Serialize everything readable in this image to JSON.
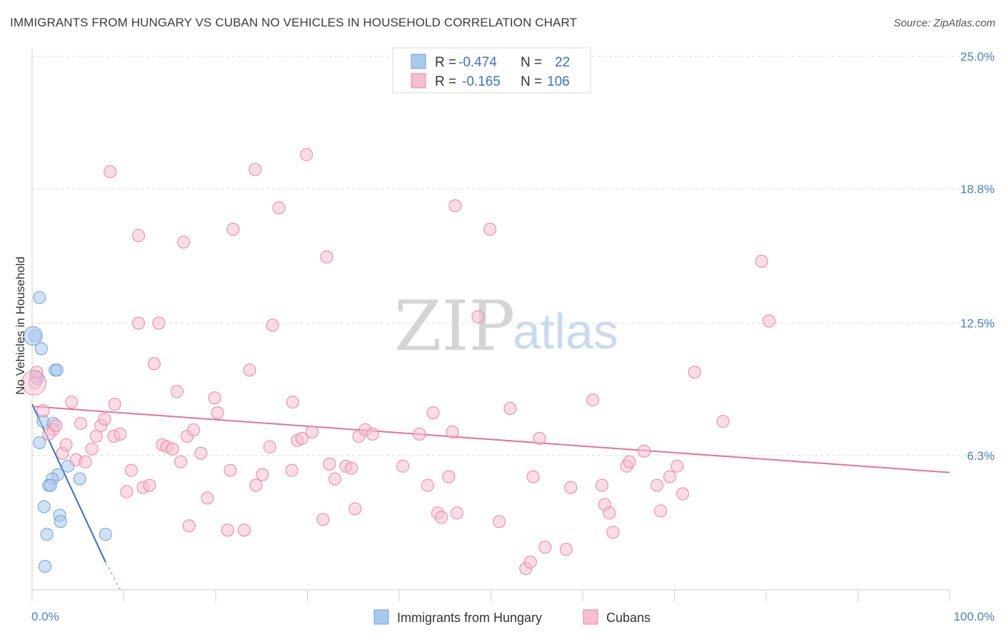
{
  "title": "IMMIGRANTS FROM HUNGARY VS CUBAN NO VEHICLES IN HOUSEHOLD CORRELATION CHART",
  "source": "Source: ZipAtlas.com",
  "watermark": {
    "part1": "ZIP",
    "part2": "atlas"
  },
  "colors": {
    "blue": "#a9c8ee",
    "blue_stroke": "#6f9fd8",
    "blue_line": "#2f6fce",
    "pink": "#f6bfd0",
    "pink_stroke": "#e8839f",
    "pink_line": "#e8709a",
    "axis_text": "#4a7fc1"
  },
  "chart_data": {
    "type": "scatter",
    "title": "IMMIGRANTS FROM HUNGARY VS CUBAN NO VEHICLES IN HOUSEHOLD CORRELATION CHART",
    "xlabel": "",
    "ylabel": "No Vehicles in Household",
    "xlim": [
      0,
      100
    ],
    "ylim": [
      0,
      25.0
    ],
    "x_tick_labels": [
      "0.0%",
      "100.0%"
    ],
    "y_ticks": [
      6.3,
      12.5,
      18.8,
      25.0
    ],
    "y_tick_labels": [
      "6.3%",
      "12.5%",
      "18.8%",
      "25.0%"
    ],
    "legend": [
      {
        "label": "R = ",
        "r": "-0.474",
        "n_label": "N = ",
        "n": "22"
      },
      {
        "label": "R = ",
        "r": "-0.165",
        "n_label": "N = ",
        "n": "106"
      }
    ],
    "series": [
      {
        "name": "Immigrants from Hungary",
        "color": "blue",
        "points": [
          [
            0.8,
            13.7
          ],
          [
            0.3,
            11.9
          ],
          [
            1.0,
            11.3
          ],
          [
            2.5,
            10.3
          ],
          [
            2.7,
            10.3
          ],
          [
            0.6,
            9.9
          ],
          [
            0.4,
            10.0
          ],
          [
            1.2,
            7.9
          ],
          [
            2.3,
            7.8
          ],
          [
            0.8,
            6.9
          ],
          [
            3.9,
            5.8
          ],
          [
            5.2,
            5.2
          ],
          [
            2.8,
            5.4
          ],
          [
            2.2,
            5.2
          ],
          [
            1.8,
            4.9
          ],
          [
            2.0,
            4.9
          ],
          [
            1.3,
            3.9
          ],
          [
            3.0,
            3.5
          ],
          [
            3.1,
            3.2
          ],
          [
            1.6,
            2.6
          ],
          [
            8.0,
            2.6
          ],
          [
            1.4,
            1.1
          ]
        ],
        "trend": {
          "x": [
            0,
            8
          ],
          "y": [
            8.7,
            1.3
          ],
          "dashed_to": [
            9.6,
            0.0
          ]
        }
      },
      {
        "name": "Cubans",
        "color": "pink",
        "points": [
          [
            0.5,
            10.2
          ],
          [
            0.3,
            9.7
          ],
          [
            1.2,
            8.4
          ],
          [
            2.3,
            7.5
          ],
          [
            2.6,
            7.7
          ],
          [
            1.8,
            7.3
          ],
          [
            4.3,
            8.8
          ],
          [
            5.3,
            7.8
          ],
          [
            3.3,
            6.4
          ],
          [
            3.7,
            6.8
          ],
          [
            4.8,
            6.1
          ],
          [
            5.8,
            6.0
          ],
          [
            6.5,
            6.6
          ],
          [
            7.0,
            7.2
          ],
          [
            7.5,
            7.7
          ],
          [
            7.9,
            8.0
          ],
          [
            9.0,
            8.7
          ],
          [
            8.9,
            7.2
          ],
          [
            9.6,
            7.3
          ],
          [
            10.8,
            5.6
          ],
          [
            10.3,
            4.6
          ],
          [
            12.1,
            4.8
          ],
          [
            12.8,
            4.9
          ],
          [
            11.6,
            12.5
          ],
          [
            13.3,
            10.6
          ],
          [
            13.8,
            12.5
          ],
          [
            14.2,
            6.8
          ],
          [
            14.7,
            6.7
          ],
          [
            15.3,
            6.6
          ],
          [
            15.8,
            9.3
          ],
          [
            16.2,
            6.0
          ],
          [
            16.9,
            7.2
          ],
          [
            17.6,
            7.5
          ],
          [
            18.4,
            6.4
          ],
          [
            19.1,
            4.3
          ],
          [
            19.9,
            9.0
          ],
          [
            20.2,
            8.3
          ],
          [
            17.1,
            3.0
          ],
          [
            21.3,
            2.8
          ],
          [
            21.6,
            5.6
          ],
          [
            23.1,
            2.8
          ],
          [
            23.7,
            10.3
          ],
          [
            24.4,
            4.9
          ],
          [
            25.1,
            5.4
          ],
          [
            25.9,
            6.7
          ],
          [
            26.2,
            12.4
          ],
          [
            28.3,
            5.6
          ],
          [
            28.4,
            8.8
          ],
          [
            28.9,
            7.0
          ],
          [
            29.4,
            7.1
          ],
          [
            30.5,
            7.4
          ],
          [
            31.7,
            3.3
          ],
          [
            32.4,
            5.9
          ],
          [
            33.0,
            5.2
          ],
          [
            34.2,
            5.8
          ],
          [
            34.8,
            5.7
          ],
          [
            35.2,
            3.8
          ],
          [
            35.6,
            7.2
          ],
          [
            36.3,
            7.5
          ],
          [
            37.1,
            7.3
          ],
          [
            40.4,
            5.8
          ],
          [
            42.2,
            7.3
          ],
          [
            43.1,
            4.9
          ],
          [
            43.7,
            8.3
          ],
          [
            44.2,
            3.6
          ],
          [
            44.6,
            3.4
          ],
          [
            45.4,
            5.3
          ],
          [
            45.8,
            7.4
          ],
          [
            46.3,
            3.6
          ],
          [
            48.6,
            12.8
          ],
          [
            50.9,
            3.2
          ],
          [
            52.1,
            8.5
          ],
          [
            53.8,
            1.0
          ],
          [
            54.3,
            1.3
          ],
          [
            54.6,
            5.3
          ],
          [
            55.3,
            7.1
          ],
          [
            55.9,
            2.0
          ],
          [
            58.2,
            1.9
          ],
          [
            58.7,
            4.8
          ],
          [
            61.1,
            8.9
          ],
          [
            62.1,
            4.9
          ],
          [
            62.4,
            4.0
          ],
          [
            62.9,
            3.6
          ],
          [
            63.3,
            2.7
          ],
          [
            64.8,
            5.8
          ],
          [
            65.1,
            6.0
          ],
          [
            66.7,
            6.5
          ],
          [
            68.1,
            4.9
          ],
          [
            68.5,
            3.7
          ],
          [
            69.5,
            5.3
          ],
          [
            70.3,
            5.8
          ],
          [
            70.9,
            4.5
          ],
          [
            72.2,
            10.2
          ],
          [
            75.3,
            7.9
          ],
          [
            8.5,
            19.6
          ],
          [
            11.6,
            16.6
          ],
          [
            16.5,
            16.3
          ],
          [
            21.9,
            16.9
          ],
          [
            24.3,
            19.7
          ],
          [
            26.9,
            17.9
          ],
          [
            29.9,
            20.4
          ],
          [
            32.1,
            15.6
          ],
          [
            46.1,
            18.0
          ],
          [
            49.9,
            16.9
          ],
          [
            79.5,
            15.4
          ],
          [
            80.3,
            12.6
          ]
        ],
        "trend": {
          "x": [
            0,
            100
          ],
          "y": [
            8.6,
            5.5
          ]
        }
      }
    ]
  },
  "bottom_legend": [
    {
      "label": "Immigrants from Hungary"
    },
    {
      "label": "Cubans"
    }
  ]
}
